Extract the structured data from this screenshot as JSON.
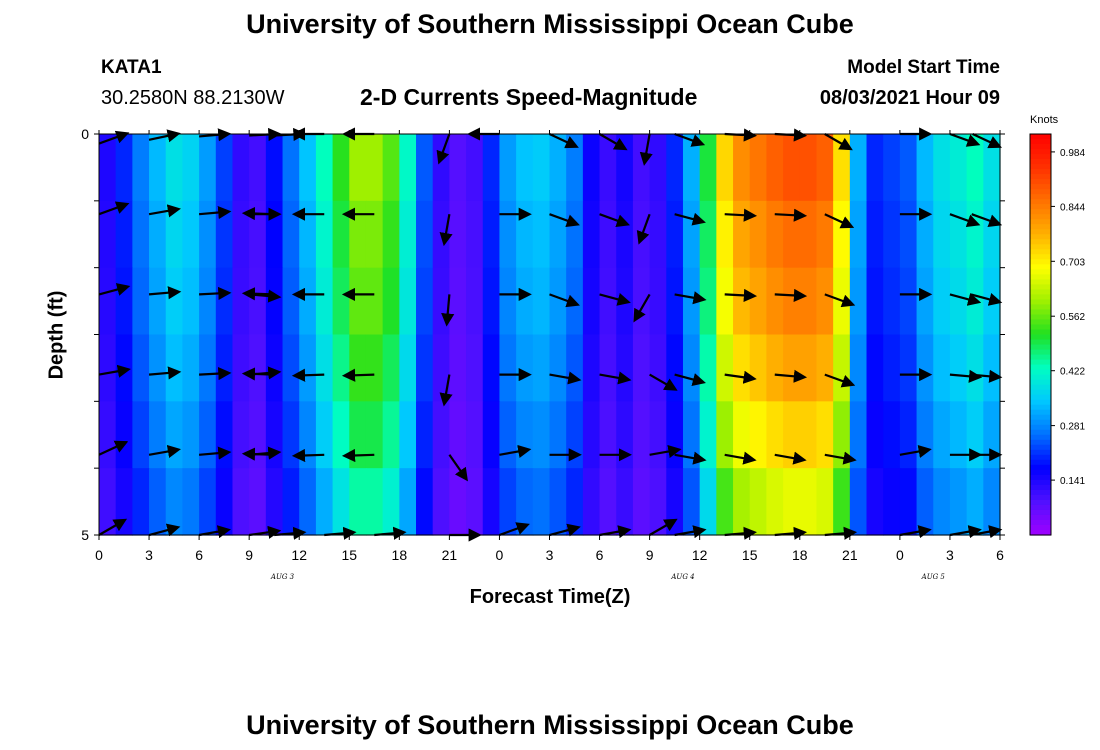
{
  "header": {
    "title_top": "University of Southern Mississippi Ocean Cube",
    "title_bottom": "University of Southern Mississippi Ocean Cube",
    "station_id": "KATA1",
    "station_coords": "30.2580N  88.2130W",
    "chart_title": "2-D Currents Speed-Magnitude",
    "model_label": "Model Start Time",
    "model_time": "08/03/2021 Hour 09"
  },
  "chart_data": {
    "type": "heatmap",
    "title": "2-D Currents Speed-Magnitude",
    "xlabel": "Forecast Time(Z)",
    "ylabel": "Depth (ft)",
    "x_tick_labels": [
      "0",
      "3",
      "6",
      "9",
      "12",
      "15",
      "18",
      "21",
      "0",
      "3",
      "6",
      "9",
      "12",
      "15",
      "18",
      "21",
      "0",
      "3",
      "6"
    ],
    "day_labels": [
      {
        "text": "AUG 3",
        "hour": 11
      },
      {
        "text": "AUG 4",
        "hour": 35
      },
      {
        "text": "AUG 5",
        "hour": 50
      }
    ],
    "y_tick_labels": [
      "0",
      "5"
    ],
    "ylim": [
      0,
      5
    ],
    "xlim_hours": [
      0,
      54
    ],
    "colorbar": {
      "unit": "Knots",
      "ticks": [
        "0.984",
        "0.844",
        "0.703",
        "0.562",
        "0.422",
        "0.281",
        "0.141"
      ],
      "range": [
        0.0,
        1.03
      ],
      "colors": [
        "#a000ff",
        "#5010ff",
        "#0000ff",
        "#0070ff",
        "#00c8ff",
        "#00ffc0",
        "#20e020",
        "#a0f000",
        "#ffff00",
        "#ffb000",
        "#ff7000",
        "#ff3000",
        "#ff0000"
      ]
    },
    "depth_rows": 5,
    "hours": [
      0,
      1,
      2,
      3,
      4,
      5,
      6,
      7,
      8,
      9,
      10,
      11,
      12,
      13,
      14,
      15,
      16,
      17,
      18,
      19,
      20,
      21,
      22,
      23,
      24,
      25,
      26,
      27,
      28,
      29,
      30,
      31,
      32,
      33,
      34,
      35,
      36,
      37,
      38,
      39,
      40,
      41,
      42,
      43,
      44,
      45,
      46,
      47,
      48,
      49,
      50,
      51,
      52,
      53,
      54
    ],
    "speed_profile": [
      0.14,
      0.2,
      0.27,
      0.33,
      0.38,
      0.36,
      0.3,
      0.22,
      0.12,
      0.1,
      0.18,
      0.26,
      0.34,
      0.43,
      0.52,
      0.6,
      0.6,
      0.55,
      0.42,
      0.24,
      0.12,
      0.08,
      0.1,
      0.2,
      0.3,
      0.34,
      0.35,
      0.32,
      0.27,
      0.16,
      0.11,
      0.15,
      0.1,
      0.12,
      0.2,
      0.32,
      0.5,
      0.73,
      0.82,
      0.85,
      0.88,
      0.9,
      0.9,
      0.88,
      0.72,
      0.32,
      0.2,
      0.22,
      0.24,
      0.33,
      0.38,
      0.4,
      0.43,
      0.38,
      0.34
    ],
    "depth_factor": [
      1.0,
      0.96,
      0.93,
      0.88,
      0.82,
      0.74
    ],
    "vector_hours": [
      0,
      3,
      6,
      9,
      10.5,
      13.5,
      16.5,
      21,
      24,
      27,
      30,
      33,
      34.5,
      37.5,
      40.5,
      43.5,
      48,
      51,
      54
    ],
    "vector_angles_deg": [
      [
        20,
        12,
        5,
        3,
        3,
        180,
        180,
        -110,
        180,
        -25,
        -30,
        -100,
        -20,
        -3,
        -3,
        -30,
        0,
        -20,
        -25
      ],
      [
        20,
        10,
        5,
        0,
        178,
        180,
        180,
        -100,
        0,
        -20,
        -20,
        -110,
        -15,
        -3,
        -3,
        -25,
        0,
        -20,
        -20
      ],
      [
        15,
        5,
        3,
        -5,
        178,
        180,
        180,
        -95,
        0,
        -20,
        -15,
        -120,
        -10,
        -3,
        -3,
        -20,
        0,
        -15,
        -15
      ],
      [
        10,
        5,
        3,
        5,
        178,
        182,
        182,
        -100,
        0,
        -10,
        -10,
        -30,
        -15,
        -8,
        -5,
        -20,
        0,
        -5,
        -5
      ],
      [
        25,
        10,
        5,
        5,
        178,
        182,
        182,
        -55,
        10,
        0,
        0,
        10,
        -10,
        -10,
        -10,
        -10,
        10,
        0,
        0
      ],
      [
        30,
        15,
        10,
        8,
        5,
        5,
        5,
        0,
        20,
        15,
        10,
        30,
        10,
        5,
        5,
        5,
        10,
        10,
        10
      ]
    ]
  }
}
